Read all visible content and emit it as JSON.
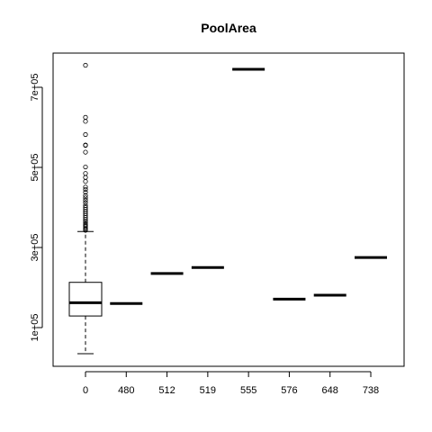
{
  "chart_data": {
    "type": "boxplot",
    "title": "PoolArea",
    "xlabel": "",
    "ylabel": "",
    "grid": false,
    "legend": "none",
    "categories": [
      "0",
      "480",
      "512",
      "519",
      "555",
      "576",
      "648",
      "738"
    ],
    "yticks": [
      100000,
      300000,
      500000,
      700000
    ],
    "ytick_labels": [
      "1e+05",
      "3e+05",
      "5e+05",
      "7e+05"
    ],
    "ylim": [
      0,
      780000
    ],
    "boxes": [
      {
        "category": "0",
        "q1": 129000,
        "median": 162000,
        "q3": 213000,
        "whisker_low": 34900,
        "whisker_high": 340000,
        "outliers": [
          755000,
          625000,
          615000,
          582000,
          556000,
          555000,
          538000,
          501000,
          485000,
          475000,
          465000,
          451000,
          445000,
          438000,
          430000,
          424000,
          418000,
          412000,
          405000,
          400000,
          395000,
          390000,
          385000,
          380000,
          375000,
          370000,
          366000,
          362000,
          358000,
          355000,
          352000,
          349000,
          346000,
          343000
        ]
      },
      {
        "category": "480",
        "q1": 160000,
        "median": 160000,
        "q3": 160000,
        "whisker_low": 160000,
        "whisker_high": 160000,
        "outliers": []
      },
      {
        "category": "512",
        "q1": 235000,
        "median": 235000,
        "q3": 235000,
        "whisker_low": 235000,
        "whisker_high": 235000,
        "outliers": []
      },
      {
        "category": "519",
        "q1": 250000,
        "median": 250000,
        "q3": 250000,
        "whisker_low": 250000,
        "whisker_high": 250000,
        "outliers": []
      },
      {
        "category": "555",
        "q1": 745000,
        "median": 745000,
        "q3": 745000,
        "whisker_low": 745000,
        "whisker_high": 745000,
        "outliers": []
      },
      {
        "category": "576",
        "q1": 171000,
        "median": 171000,
        "q3": 171000,
        "whisker_low": 171000,
        "whisker_high": 171000,
        "outliers": []
      },
      {
        "category": "648",
        "q1": 181000,
        "median": 181000,
        "q3": 181000,
        "whisker_low": 181000,
        "whisker_high": 181000,
        "outliers": []
      },
      {
        "category": "738",
        "q1": 274970,
        "median": 274970,
        "q3": 274970,
        "whisker_low": 274970,
        "whisker_high": 274970,
        "outliers": []
      }
    ]
  }
}
